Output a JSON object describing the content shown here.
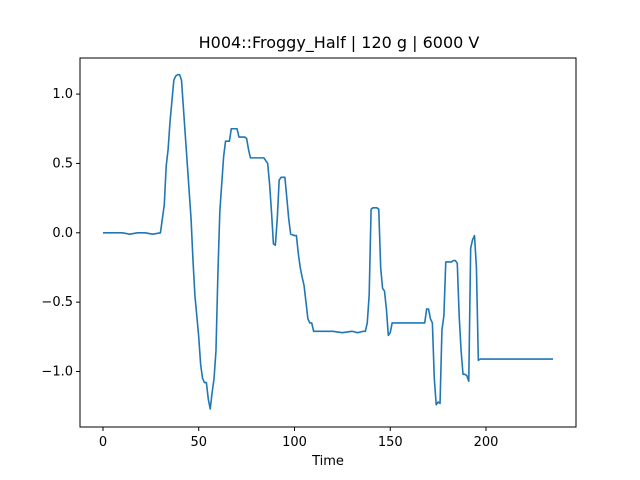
{
  "chart_data": {
    "type": "line",
    "title": "H004::Froggy_Half | 120 g | 6000 V",
    "xlabel": "Time",
    "ylabel": "",
    "xlim": [
      -12,
      247
    ],
    "ylim": [
      -1.4,
      1.26
    ],
    "xticks": [
      0,
      50,
      100,
      150,
      200
    ],
    "yticks": [
      -1.0,
      -0.5,
      0.0,
      0.5,
      1.0
    ],
    "grid": false,
    "series": [
      {
        "color": "#1f77b4",
        "x": [
          0,
          5,
          10,
          14,
          18,
          22,
          26,
          30,
          31,
          32,
          33,
          34,
          35,
          36,
          37,
          38,
          39,
          40,
          41,
          42,
          43,
          44,
          45,
          46,
          47,
          48,
          49,
          50,
          51,
          52,
          53,
          54,
          55,
          56,
          57,
          58,
          59,
          60,
          61,
          62,
          63,
          64,
          65,
          66,
          67,
          68,
          69,
          70,
          71,
          72,
          73,
          74,
          75,
          76,
          77,
          78,
          80,
          82,
          84,
          85,
          86,
          87,
          88,
          89,
          90,
          91,
          92,
          93,
          94,
          95,
          96,
          97,
          98,
          100,
          101,
          102,
          103,
          104,
          105,
          106,
          107,
          108,
          109,
          110,
          112,
          115,
          120,
          125,
          130,
          133,
          136,
          137,
          138,
          139,
          140,
          141,
          142,
          143,
          144,
          145,
          146,
          147,
          148,
          149,
          150,
          151,
          152,
          153,
          155,
          158,
          162,
          165,
          167,
          168,
          169,
          170,
          171,
          172,
          173,
          174,
          175,
          176,
          177,
          178,
          179,
          180,
          182,
          183,
          184,
          185,
          186,
          187,
          188,
          189,
          190,
          191,
          192,
          193,
          194,
          195,
          196,
          197,
          200,
          205,
          210,
          215,
          220,
          225,
          230,
          235
        ],
        "values": [
          0.0,
          0.0,
          0.0,
          -0.01,
          0.0,
          0.0,
          -0.01,
          0.0,
          0.1,
          0.2,
          0.48,
          0.6,
          0.8,
          0.95,
          1.1,
          1.13,
          1.14,
          1.14,
          1.1,
          0.9,
          0.7,
          0.5,
          0.3,
          0.1,
          -0.2,
          -0.45,
          -0.6,
          -0.75,
          -0.95,
          -1.05,
          -1.08,
          -1.08,
          -1.2,
          -1.27,
          -1.15,
          -1.05,
          -0.85,
          -0.3,
          0.15,
          0.35,
          0.55,
          0.66,
          0.66,
          0.66,
          0.75,
          0.75,
          0.75,
          0.75,
          0.69,
          0.69,
          0.69,
          0.69,
          0.68,
          0.6,
          0.54,
          0.54,
          0.54,
          0.54,
          0.54,
          0.52,
          0.5,
          0.35,
          0.15,
          -0.08,
          -0.09,
          0.1,
          0.38,
          0.4,
          0.4,
          0.4,
          0.25,
          0.1,
          -0.01,
          -0.02,
          -0.02,
          -0.15,
          -0.25,
          -0.32,
          -0.38,
          -0.5,
          -0.62,
          -0.65,
          -0.65,
          -0.71,
          -0.71,
          -0.71,
          -0.71,
          -0.72,
          -0.71,
          -0.72,
          -0.71,
          -0.71,
          -0.65,
          -0.45,
          0.17,
          0.18,
          0.18,
          0.18,
          0.17,
          -0.25,
          -0.4,
          -0.42,
          -0.55,
          -0.74,
          -0.72,
          -0.65,
          -0.65,
          -0.65,
          -0.65,
          -0.65,
          -0.65,
          -0.65,
          -0.65,
          -0.65,
          -0.55,
          -0.55,
          -0.62,
          -0.65,
          -1.05,
          -1.24,
          -1.22,
          -1.23,
          -0.7,
          -0.6,
          -0.21,
          -0.21,
          -0.21,
          -0.2,
          -0.2,
          -0.22,
          -0.6,
          -0.85,
          -1.02,
          -1.02,
          -1.03,
          -1.07,
          -0.11,
          -0.05,
          -0.02,
          -0.25,
          -0.92,
          -0.91,
          -0.91,
          -0.91,
          -0.91,
          -0.91,
          -0.91,
          -0.91,
          -0.91,
          -0.91
        ]
      }
    ]
  }
}
